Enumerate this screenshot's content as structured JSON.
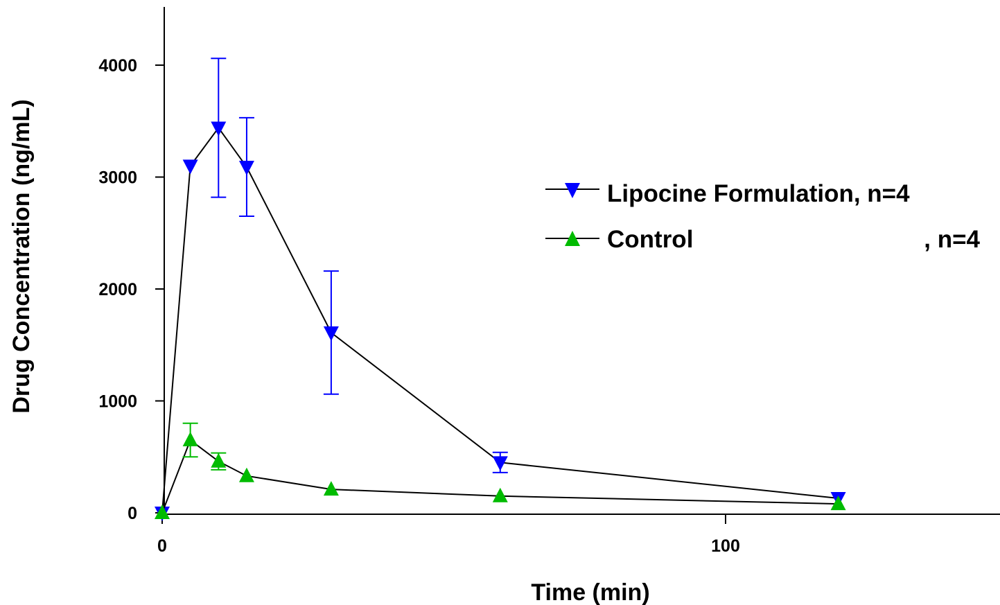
{
  "chart_data": {
    "type": "line",
    "title": "",
    "xlabel": "Time (min)",
    "ylabel": "Drug Concentration (ng/mL)",
    "xlim": [
      0,
      148
    ],
    "ylim": [
      0,
      4500
    ],
    "xticks": [
      0,
      100
    ],
    "yticks": [
      0,
      1000,
      2000,
      3000,
      4000
    ],
    "grid": false,
    "legend_position": "upper-right",
    "series": [
      {
        "name": "Lipocine Formulation, n=4",
        "marker": "triangle-down",
        "color": "#0000ff",
        "x": [
          0,
          5,
          10,
          15,
          30,
          60,
          120
        ],
        "y": [
          0,
          3100,
          3440,
          3090,
          1610,
          450,
          130
        ],
        "error": [
          null,
          null,
          620,
          440,
          550,
          90,
          null
        ]
      },
      {
        "name": "Control , n=4",
        "marker": "triangle-up",
        "color": "#00bb00",
        "x": [
          0,
          5,
          10,
          15,
          30,
          60,
          120
        ],
        "y": [
          0,
          650,
          460,
          330,
          210,
          150,
          80
        ],
        "error": [
          null,
          150,
          75,
          null,
          null,
          null,
          null
        ]
      }
    ]
  },
  "legend": {
    "entry1_label": "Lipocine Formulation, n=4",
    "entry2_label": "Control",
    "entry2_suffix": ", n=4"
  }
}
